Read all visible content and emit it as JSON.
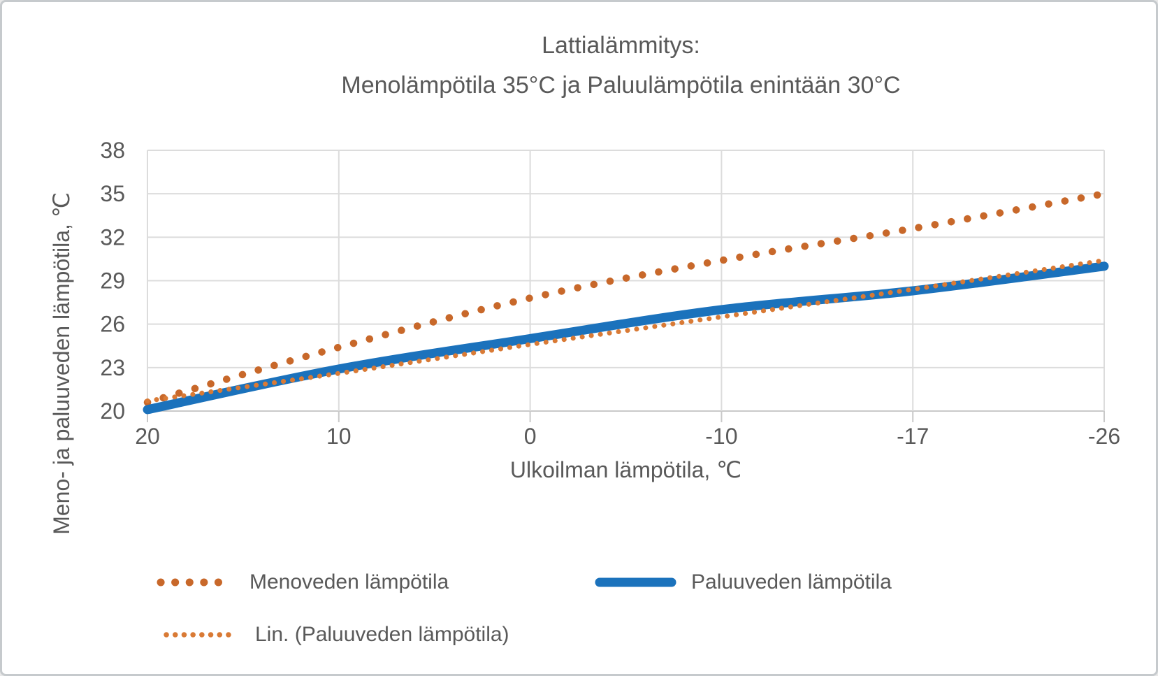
{
  "chart_data": {
    "type": "line",
    "title": "Lattialämmitys: Menolämpötila 35°C ja Paluulämpötila enintään 30°C",
    "title_lines": [
      "Lattialämmitys:",
      "Menolämpötila 35°C ja Paluulämpötila enintään 30°C"
    ],
    "xlabel": "Ulkoilman lämpötila, ℃",
    "ylabel": "Meno- ja paluuveden lämpötila, ℃",
    "categories": [
      "20",
      "10",
      "0",
      "-10",
      "-17",
      "-26"
    ],
    "y_ticks": [
      20,
      23,
      26,
      29,
      32,
      35,
      38
    ],
    "ylim": [
      20,
      38
    ],
    "grid": "horizontal and vertical major gridlines, light gray",
    "legend_position": "bottom-left, two rows",
    "series": [
      {
        "name": "Menoveden lämpötila",
        "values": [
          20.6,
          24.4,
          27.8,
          30.4,
          32.6,
          35.0
        ],
        "color": "#c8682a",
        "style": "dotted-round"
      },
      {
        "name": "Paluuveden lämpötila",
        "values": [
          20.1,
          22.9,
          25.0,
          27.0,
          28.3,
          30.0
        ],
        "color": "#1b72bc",
        "style": "solid-thick"
      },
      {
        "name": "Lin. (Paluuveden lämpötila)",
        "values": [
          20.7,
          22.6,
          24.6,
          26.5,
          28.4,
          30.4
        ],
        "color": "#d97a35",
        "style": "dotted-fine",
        "trendline_of": "Paluuveden lämpötila"
      }
    ]
  },
  "colors": {
    "text": "#595959",
    "gridline": "#dcdcdc",
    "axis_line": "#c9c9c9",
    "background": "#ffffff",
    "frame_border": "#c6cacd"
  }
}
